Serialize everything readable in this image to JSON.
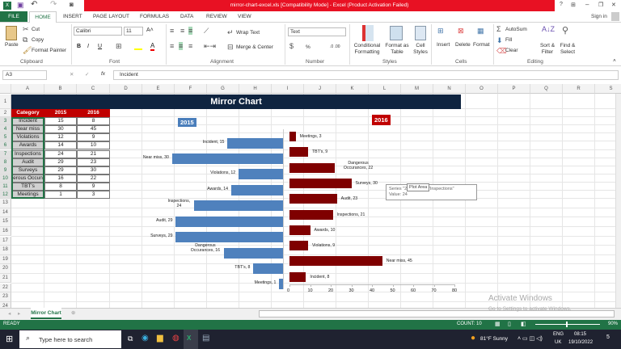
{
  "window": {
    "title": "mirror-chart-excel.xls  [Compatibility Mode] -  Excel (Product Activation Failed)",
    "sign_in": "Sign in",
    "controls": [
      "?",
      "⊞",
      "–",
      "❐",
      "✕"
    ]
  },
  "ribbon": {
    "tabs": [
      "FILE",
      "HOME",
      "INSERT",
      "PAGE LAYOUT",
      "FORMULAS",
      "DATA",
      "REVIEW",
      "VIEW"
    ],
    "clipboard": {
      "paste": "Paste",
      "cut": "Cut",
      "copy": "Copy",
      "format_painter": "Format Painter",
      "label": "Clipboard"
    },
    "font": {
      "name": "Calibri",
      "size": "11",
      "bold": "B",
      "italic": "I",
      "underline": "U",
      "label": "Font"
    },
    "alignment": {
      "wrap": "Wrap Text",
      "merge": "Merge & Center",
      "label": "Alignment"
    },
    "number": {
      "format": "Text",
      "percent": "%",
      "label": "Number"
    },
    "styles": {
      "conditional": "Conditional Formatting",
      "format_table": "Format as Table",
      "cell_styles": "Cell Styles",
      "label": "Styles"
    },
    "cells": {
      "insert": "Insert",
      "delete": "Delete",
      "format": "Format",
      "label": "Cells"
    },
    "editing": {
      "autosum": "AutoSum",
      "fill": "Fill",
      "clear": "Clear",
      "sort": "Sort & Filter",
      "find": "Find & Select",
      "label": "Editing"
    }
  },
  "formula_bar": {
    "name_box": "A3",
    "fx": "fx",
    "value": "Incident"
  },
  "columns": [
    "A",
    "B",
    "C",
    "D",
    "E",
    "F",
    "G",
    "H",
    "I",
    "J",
    "K",
    "L",
    "M",
    "N",
    "O",
    "P",
    "Q",
    "R",
    "S"
  ],
  "rows": [
    "1",
    "2",
    "3",
    "4",
    "5",
    "6",
    "7",
    "8",
    "9",
    "10",
    "11",
    "12",
    "13",
    "14",
    "15",
    "16",
    "17",
    "18",
    "19",
    "20",
    "21",
    "22",
    "23",
    "24"
  ],
  "banner": "Mirror Chart",
  "table": {
    "headers": [
      "Category",
      "2015",
      "2016"
    ],
    "rows": [
      [
        "Incident",
        "15",
        "8"
      ],
      [
        "Near miss",
        "30",
        "45"
      ],
      [
        "Violations",
        "12",
        "9"
      ],
      [
        "Awards",
        "14",
        "10"
      ],
      [
        "Inspections",
        "24",
        "21"
      ],
      [
        "Audit",
        "29",
        "23"
      ],
      [
        "Surveys",
        "29",
        "30"
      ],
      [
        "erous Occun",
        "16",
        "22"
      ],
      [
        "TBT's",
        "8",
        "9"
      ],
      [
        "Meetings",
        "1",
        "3"
      ]
    ]
  },
  "chart_data": [
    {
      "type": "bar",
      "orientation": "horizontal-reversed",
      "title": "2015",
      "color": "#4f81bd",
      "categories": [
        "Incident",
        "Near miss",
        "Violations",
        "Awards",
        "Inspections",
        "Audit",
        "Surveys",
        "Dangerous Occurances",
        "TBT's",
        "Meetings"
      ],
      "values": [
        15,
        30,
        12,
        14,
        24,
        29,
        29,
        16,
        8,
        1
      ],
      "labels": [
        "Incident, 15",
        "Near miss, 30",
        "Violations, 12",
        "Awards, 14",
        "Inspections, 24",
        "Audit, 29",
        "Surveys, 29",
        "Dangerous Occurances, 16",
        "TBT's, 8",
        "Meetings, 1"
      ]
    },
    {
      "type": "bar",
      "orientation": "horizontal",
      "title": "2016",
      "color": "#7f0000",
      "xlim": [
        0,
        80
      ],
      "ticks": [
        "0",
        "10",
        "20",
        "30",
        "40",
        "50",
        "60",
        "70",
        "80"
      ],
      "categories": [
        "Meetings",
        "TBT's",
        "Dangerous Occurances",
        "Surveys",
        "Audit",
        "Inspections",
        "Awards",
        "Violations",
        "Near miss",
        "Incident"
      ],
      "values": [
        3,
        9,
        22,
        30,
        23,
        21,
        10,
        9,
        45,
        8
      ],
      "labels": [
        "Meetings, 3",
        "TBT's, 9",
        "Dangerous Occurances, 22",
        "Surveys, 30",
        "Audit, 23",
        "Inspections, 21",
        "Awards, 10",
        "Violations, 9",
        "Near miss, 45",
        "Incident, 8"
      ]
    }
  ],
  "tooltip": {
    "line1": "Series \"2015\" Point \"Inspections\"",
    "line2": "Value: 24",
    "plot_area": "Plot Area"
  },
  "sheet_tab": "Mirror Chart",
  "watermark": {
    "line1": "Activate Windows",
    "line2": "Go to Settings to activate Windows."
  },
  "status": {
    "ready": "READY",
    "count": "COUNT: 10",
    "zoom": "90%"
  },
  "taskbar": {
    "search": "Type here to search",
    "weather": "81°F  Sunny",
    "lang1": "ENG",
    "lang2": "UK",
    "time": "08:15",
    "date": "19/10/2022",
    "notif": "5"
  }
}
